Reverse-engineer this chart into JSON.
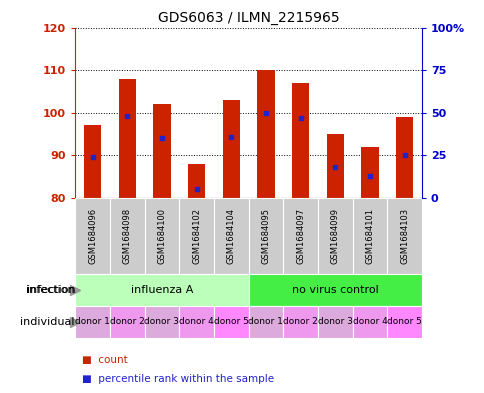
{
  "title": "GDS6063 / ILMN_2215965",
  "samples": [
    "GSM1684096",
    "GSM1684098",
    "GSM1684100",
    "GSM1684102",
    "GSM1684104",
    "GSM1684095",
    "GSM1684097",
    "GSM1684099",
    "GSM1684101",
    "GSM1684103"
  ],
  "count_values": [
    97,
    108,
    102,
    88,
    103,
    110,
    107,
    95,
    92,
    99
  ],
  "percentile_values": [
    24,
    48,
    35,
    5,
    36,
    50,
    47,
    18,
    13,
    25
  ],
  "y_min": 80,
  "y_max": 120,
  "y_ticks": [
    80,
    90,
    100,
    110,
    120
  ],
  "y2_ticks": [
    0,
    25,
    50,
    75,
    100
  ],
  "infection_groups": [
    {
      "label": "influenza A",
      "start": 0,
      "end": 5,
      "color": "#bbffbb"
    },
    {
      "label": "no virus control",
      "start": 5,
      "end": 10,
      "color": "#44ee44"
    }
  ],
  "individual_labels": [
    "donor 1",
    "donor 2",
    "donor 3",
    "donor 4",
    "donor 5",
    "donor 1",
    "donor 2",
    "donor 3",
    "donor 4",
    "donor 5"
  ],
  "individual_colors": [
    "#ddaadd",
    "#ee99ee",
    "#ddaadd",
    "#ee99ee",
    "#ff88ff",
    "#ddaadd",
    "#ee99ee",
    "#ddaadd",
    "#ee99ee",
    "#ff88ff"
  ],
  "sample_label_bg": "#cccccc",
  "bar_color": "#cc2200",
  "dot_color": "#2222cc",
  "tick_label_color_left": "#cc2200",
  "tick_label_color_right": "#0000cc",
  "bar_width": 0.5,
  "legend_items": [
    {
      "label": "count",
      "color": "#cc2200"
    },
    {
      "label": "percentile rank within the sample",
      "color": "#2222cc"
    }
  ]
}
